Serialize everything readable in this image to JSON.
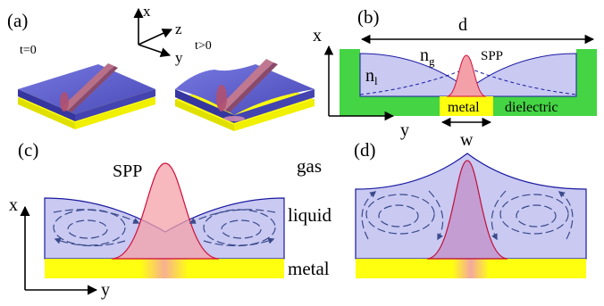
{
  "panels": {
    "a": {
      "label": "(a)",
      "t0": "t=0",
      "t1": "t>0",
      "axes": {
        "x": "x",
        "y": "y",
        "z": "z"
      }
    },
    "b": {
      "label": "(b)",
      "d": "d",
      "x": "x",
      "y": "y",
      "n_l": "n",
      "n_l_sub": "l",
      "n_g": "n",
      "n_g_sub": "g",
      "spp": "SPP",
      "metal": "metal",
      "dielectric": "dielectric",
      "w": "w"
    },
    "c": {
      "label": "(c)",
      "spp": "SPP",
      "x": "x",
      "y": "y"
    },
    "d": {
      "label": "(d)"
    },
    "legend": {
      "gas": "gas",
      "liquid": "liquid",
      "metal": "metal"
    }
  },
  "colors": {
    "liquid": "#c9c9f2",
    "liquid_edge": "#1a1aa0",
    "spp_fill": "#f4a0a8",
    "spp_edge": "#d0103a",
    "metal": "#ffff10",
    "dielectric": "#44d444",
    "flow": "#3a4a8a",
    "slab_top": "#6a6ad8"
  }
}
